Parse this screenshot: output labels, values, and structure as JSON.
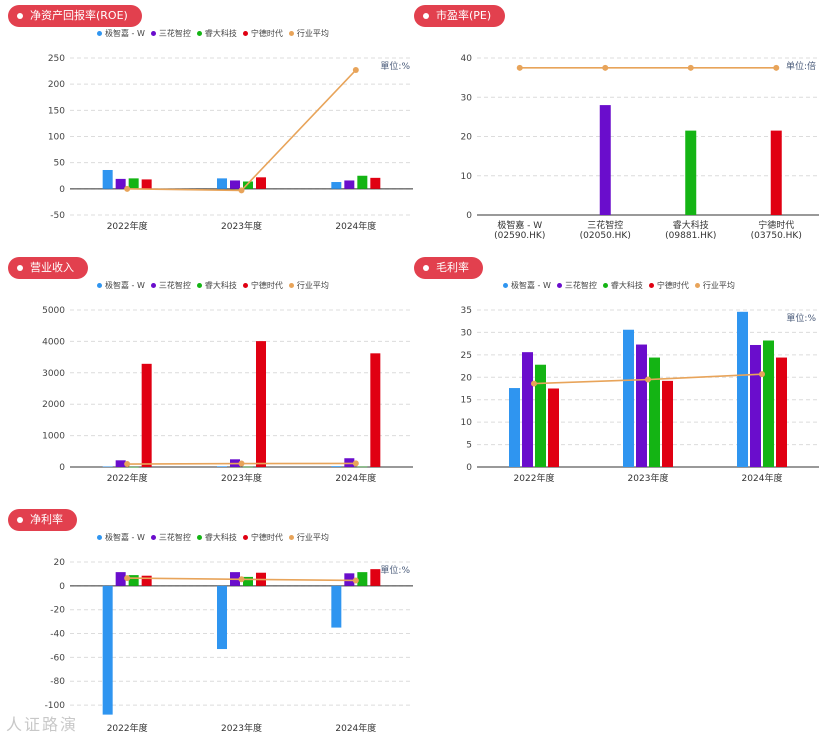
{
  "legend_labels": [
    "极智嘉 - W",
    "三花智控",
    "睿大科技",
    "宁德时代",
    "行业平均"
  ],
  "colors": {
    "jizhijia": "#2f95f0",
    "sanhua": "#6a0dcc",
    "ruida": "#14b414",
    "ningde": "#e00012",
    "industry": "#e8a45a",
    "tag_bg": "#e2404e"
  },
  "watermark": "人证路演",
  "chart_data": [
    {
      "id": "roe",
      "type": "bar",
      "title": "净资产回报率(ROE)",
      "unit": "單位:%",
      "categories": [
        "2022年度",
        "2023年度",
        "2024年度"
      ],
      "ylim": [
        -50,
        250
      ],
      "yticks": [
        -50,
        0,
        50,
        100,
        150,
        200,
        250
      ],
      "series": [
        {
          "name": "极智嘉 - W",
          "color": "#2f95f0",
          "values": [
            36,
            20,
            13
          ]
        },
        {
          "name": "三花智控",
          "color": "#6a0dcc",
          "values": [
            19,
            16,
            16
          ]
        },
        {
          "name": "睿大科技",
          "color": "#14b414",
          "values": [
            20,
            14,
            25
          ]
        },
        {
          "name": "宁德时代",
          "color": "#e00012",
          "values": [
            18,
            22,
            21
          ]
        }
      ],
      "line": {
        "name": "行业平均",
        "color": "#e8a45a",
        "values": [
          0,
          -3,
          227
        ]
      }
    },
    {
      "id": "pe",
      "type": "bar",
      "title": "市盈率(PE)",
      "unit": "单位:倍",
      "categories": [
        "极智嘉 - W\n(02590.HK)",
        "三花智控\n(02050.HK)",
        "睿大科技\n(09881.HK)",
        "宁德时代\n(03750.HK)"
      ],
      "ylim": [
        0,
        40
      ],
      "yticks": [
        0,
        10,
        20,
        30,
        40
      ],
      "bars": [
        {
          "name": "极智嘉 - W",
          "color": "#2f95f0",
          "value": 0
        },
        {
          "name": "三花智控",
          "color": "#6a0dcc",
          "value": 28
        },
        {
          "name": "睿大科技",
          "color": "#14b414",
          "value": 21.5
        },
        {
          "name": "宁德时代",
          "color": "#e00012",
          "value": 21.5
        }
      ],
      "line": {
        "name": "行业平均",
        "color": "#e8a45a",
        "values": [
          37.5,
          37.5,
          37.5,
          37.5
        ]
      }
    },
    {
      "id": "revenue",
      "type": "bar",
      "title": "营业收入",
      "unit": "",
      "categories": [
        "2022年度",
        "2023年度",
        "2024年度"
      ],
      "ylim": [
        0,
        5000
      ],
      "yticks": [
        0,
        1000,
        2000,
        3000,
        4000,
        5000
      ],
      "series": [
        {
          "name": "极智嘉 - W",
          "color": "#2f95f0",
          "values": [
            15,
            20,
            25
          ]
        },
        {
          "name": "三花智控",
          "color": "#6a0dcc",
          "values": [
            213,
            245,
            279
          ]
        },
        {
          "name": "睿大科技",
          "color": "#14b414",
          "values": [
            5,
            8,
            10
          ]
        },
        {
          "name": "宁德时代",
          "color": "#e00012",
          "values": [
            3286,
            4009,
            3620
          ]
        }
      ],
      "line": {
        "name": "行业平均",
        "color": "#e8a45a",
        "values": [
          95,
          110,
          115
        ]
      }
    },
    {
      "id": "gross_margin",
      "type": "bar",
      "title": "毛利率",
      "unit": "單位:%",
      "categories": [
        "2022年度",
        "2023年度",
        "2024年度"
      ],
      "ylim": [
        0,
        35
      ],
      "yticks": [
        0,
        5,
        10,
        15,
        20,
        25,
        30,
        35
      ],
      "series": [
        {
          "name": "极智嘉 - W",
          "color": "#2f95f0",
          "values": [
            17.6,
            30.6,
            34.6
          ]
        },
        {
          "name": "三花智控",
          "color": "#6a0dcc",
          "values": [
            25.6,
            27.3,
            27.2
          ]
        },
        {
          "name": "睿大科技",
          "color": "#14b414",
          "values": [
            22.8,
            24.4,
            28.2
          ]
        },
        {
          "name": "宁德时代",
          "color": "#e00012",
          "values": [
            17.5,
            19.2,
            24.4
          ]
        }
      ],
      "line": {
        "name": "行业平均",
        "color": "#e8a45a",
        "values": [
          18.6,
          19.5,
          20.7
        ]
      }
    },
    {
      "id": "net_margin",
      "type": "bar",
      "title": "净利率",
      "unit": "單位:%",
      "categories": [
        "2022年度",
        "2023年度",
        "2024年度"
      ],
      "ylim": [
        -110,
        20
      ],
      "yticks": [
        -100,
        -80,
        -60,
        -40,
        -20,
        0,
        20
      ],
      "series": [
        {
          "name": "极智嘉 - W",
          "color": "#2f95f0",
          "values": [
            -108,
            -53,
            -35
          ]
        },
        {
          "name": "三花智控",
          "color": "#6a0dcc",
          "values": [
            11.5,
            11.5,
            10.5
          ]
        },
        {
          "name": "睿大科技",
          "color": "#14b414",
          "values": [
            9,
            7.5,
            11.5
          ]
        },
        {
          "name": "宁德时代",
          "color": "#e00012",
          "values": [
            8.5,
            11,
            14
          ]
        }
      ],
      "line": {
        "name": "行业平均",
        "color": "#e8a45a",
        "values": [
          6.5,
          5.5,
          4.5
        ]
      }
    }
  ]
}
